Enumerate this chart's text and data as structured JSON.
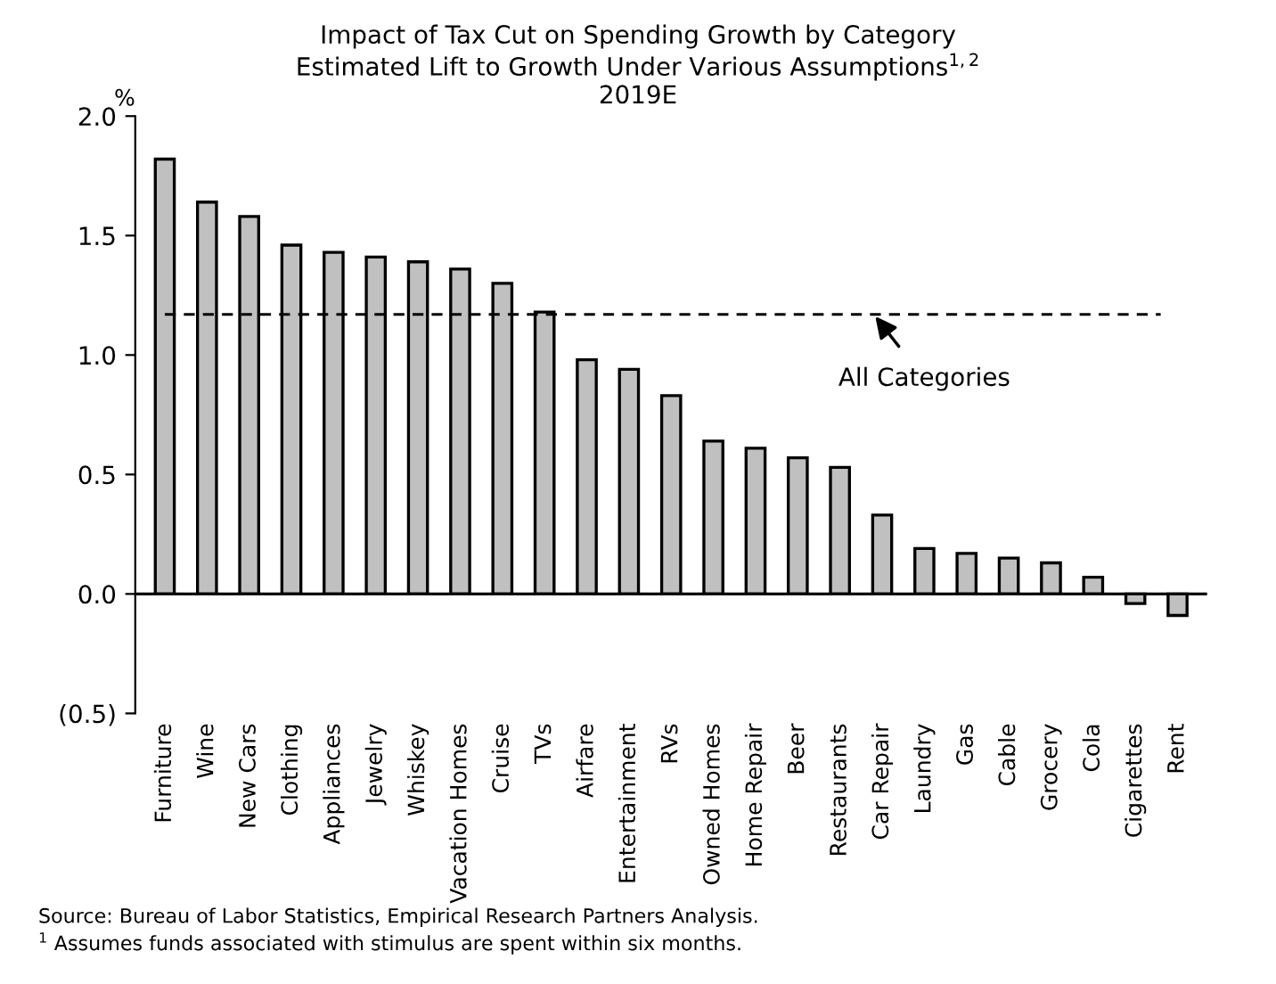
{
  "chart_data": {
    "type": "bar",
    "title": "Impact of Tax Cut on Spending Growth by Category\nEstimated Lift to Growth Under Various Assumptions$^{1,2}$\n2019E",
    "ylabel": "%",
    "categories": [
      "Furniture",
      "Wine",
      "New Cars",
      "Clothing",
      "Appliances",
      "Jewelry",
      "Whiskey",
      "Vacation Homes",
      "Cruise",
      "TVs",
      "Airfare",
      "Entertainment",
      "RVs",
      "Owned Homes",
      "Home Repair",
      "Beer",
      "Restaurants",
      "Car Repair",
      "Laundry",
      "Gas",
      "Cable",
      "Grocery",
      "Cola",
      "Cigarettes",
      "Rent"
    ],
    "values": [
      1.82,
      1.64,
      1.58,
      1.46,
      1.43,
      1.41,
      1.39,
      1.36,
      1.3,
      1.18,
      0.98,
      0.94,
      0.83,
      0.64,
      0.61,
      0.57,
      0.53,
      0.33,
      0.19,
      0.17,
      0.15,
      0.13,
      0.07,
      -0.04,
      -0.09
    ],
    "color": "#c0c0c0",
    "ylim": [
      -0.5,
      2.0
    ],
    "yticks": [
      {
        "value": -0.5,
        "label": "(0.5)"
      },
      {
        "value": 0.0,
        "label": "0.0"
      },
      {
        "value": 0.5,
        "label": "0.5"
      },
      {
        "value": 1.0,
        "label": "1.0"
      },
      {
        "value": 1.5,
        "label": "1.5"
      },
      {
        "value": 2.0,
        "label": "2.0"
      }
    ],
    "ref_lines": [
      {
        "axis": "y",
        "value": 1.17,
        "label": "All Categories",
        "line_style": "dashed",
        "color": "#000000"
      }
    ],
    "annotations": [
      "Source: Bureau of Labor Statistics, Empirical Research Partners Analysis.",
      "$^{1}$ Assumes funds associated with stimulus are spent within six months."
    ]
  }
}
